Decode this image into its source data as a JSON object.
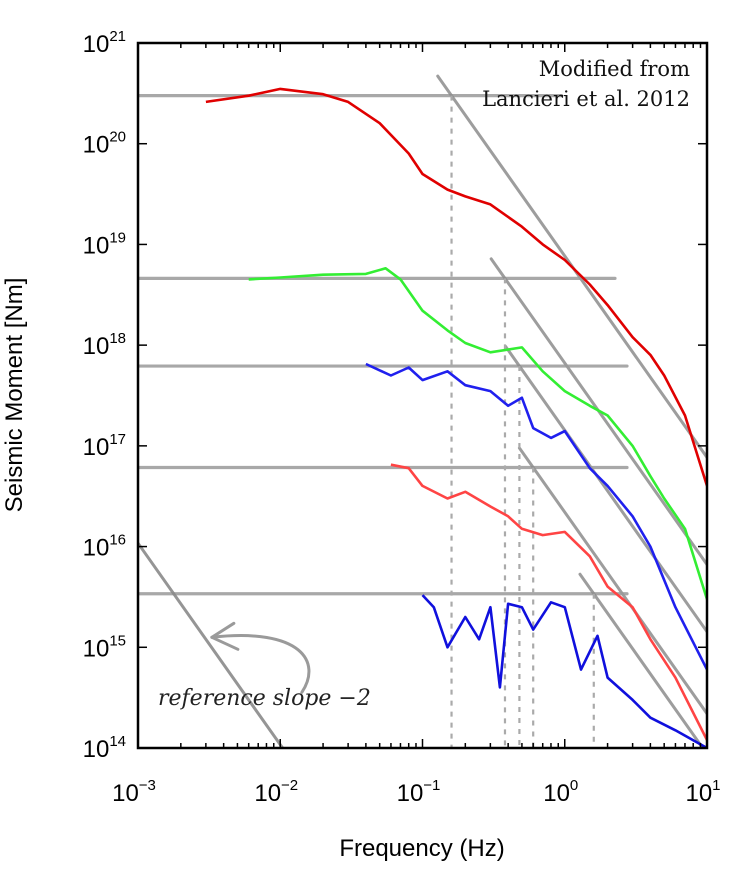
{
  "chart_data": {
    "type": "line",
    "xlabel": "Frequency (Hz)",
    "ylabel": "Seismic Moment [Nm]",
    "xscale": "log",
    "yscale": "log",
    "xlim": [
      0.001,
      10
    ],
    "ylim": [
      100000000000000.0,
      1e+21
    ],
    "grid": false,
    "x_ticks": [
      {
        "base": "10",
        "exp": "−3",
        "value": 0.001
      },
      {
        "base": "10",
        "exp": "−2",
        "value": 0.01
      },
      {
        "base": "10",
        "exp": "−1",
        "value": 0.1
      },
      {
        "base": "10",
        "exp": "0",
        "value": 1
      },
      {
        "base": "10",
        "exp": "1",
        "value": 10
      }
    ],
    "y_ticks": [
      {
        "base": "10",
        "exp": "14",
        "value": 100000000000000.0
      },
      {
        "base": "10",
        "exp": "15",
        "value": 1000000000000000.0
      },
      {
        "base": "10",
        "exp": "16",
        "value": 1e+16
      },
      {
        "base": "10",
        "exp": "17",
        "value": 1e+17
      },
      {
        "base": "10",
        "exp": "18",
        "value": 1e+18
      },
      {
        "base": "10",
        "exp": "19",
        "value": 1e+19
      },
      {
        "base": "10",
        "exp": "20",
        "value": 1e+20
      },
      {
        "base": "10",
        "exp": "21",
        "value": 1e+21
      }
    ],
    "annotation": [
      "Modified from",
      "Lancieri et al. 2012"
    ],
    "reference_label": "reference slope −2",
    "series": [
      {
        "color": "#e00000",
        "points": [
          [
            0.003,
            2.6e+20
          ],
          [
            0.006,
            3e+20
          ],
          [
            0.01,
            3.5e+20
          ],
          [
            0.02,
            3.1e+20
          ],
          [
            0.03,
            2.6e+20
          ],
          [
            0.05,
            1.6e+20
          ],
          [
            0.08,
            8e+19
          ],
          [
            0.1,
            5e+19
          ],
          [
            0.15,
            3.5e+19
          ],
          [
            0.2,
            3e+19
          ],
          [
            0.3,
            2.5e+19
          ],
          [
            0.5,
            1.5e+19
          ],
          [
            0.7,
            1e+19
          ],
          [
            1,
            7e+18
          ],
          [
            1.5,
            4e+18
          ],
          [
            2,
            2.5e+18
          ],
          [
            3,
            1.2e+18
          ],
          [
            4,
            8e+17
          ],
          [
            5,
            5e+17
          ],
          [
            7,
            2e+17
          ],
          [
            10,
            4e+16
          ]
        ]
      },
      {
        "color": "#33ee33",
        "points": [
          [
            0.006,
            4.5e+18
          ],
          [
            0.01,
            4.7e+18
          ],
          [
            0.02,
            5e+18
          ],
          [
            0.04,
            5.1e+18
          ],
          [
            0.055,
            5.8e+18
          ],
          [
            0.07,
            4.5e+18
          ],
          [
            0.1,
            2.2e+18
          ],
          [
            0.15,
            1.4e+18
          ],
          [
            0.2,
            1.05e+18
          ],
          [
            0.3,
            8.5e+17
          ],
          [
            0.5,
            9.5e+17
          ],
          [
            0.7,
            5.5e+17
          ],
          [
            1,
            3.5e+17
          ],
          [
            1.5,
            2.5e+17
          ],
          [
            2,
            2e+17
          ],
          [
            3,
            1e+17
          ],
          [
            4,
            5e+16
          ],
          [
            5,
            3e+16
          ],
          [
            7,
            1.5e+16
          ],
          [
            10,
            3000000000000000.0
          ]
        ]
      },
      {
        "color": "#2020ee",
        "points": [
          [
            0.04,
            6.5e+17
          ],
          [
            0.06,
            5e+17
          ],
          [
            0.08,
            6e+17
          ],
          [
            0.1,
            4.5e+17
          ],
          [
            0.15,
            5.5e+17
          ],
          [
            0.2,
            4e+17
          ],
          [
            0.3,
            3.5e+17
          ],
          [
            0.4,
            2.5e+17
          ],
          [
            0.5,
            3e+17
          ],
          [
            0.6,
            1.5e+17
          ],
          [
            0.8,
            1.2e+17
          ],
          [
            1,
            1.4e+17
          ],
          [
            1.5,
            6e+16
          ],
          [
            2,
            4e+16
          ],
          [
            3,
            2e+16
          ],
          [
            4,
            1e+16
          ],
          [
            6,
            2500000000000000.0
          ],
          [
            10,
            600000000000000.0
          ]
        ]
      },
      {
        "color": "#ff4444",
        "points": [
          [
            0.06,
            6.5e+16
          ],
          [
            0.08,
            6e+16
          ],
          [
            0.1,
            4e+16
          ],
          [
            0.15,
            3e+16
          ],
          [
            0.2,
            3.5e+16
          ],
          [
            0.3,
            2.5e+16
          ],
          [
            0.4,
            2e+16
          ],
          [
            0.5,
            1.5e+16
          ],
          [
            0.7,
            1.3e+16
          ],
          [
            1,
            1.4e+16
          ],
          [
            1.5,
            8000000000000000.0
          ],
          [
            2,
            4000000000000000.0
          ],
          [
            3,
            2500000000000000.0
          ],
          [
            4,
            1200000000000000.0
          ],
          [
            6,
            500000000000000.0
          ],
          [
            10,
            120000000000000.0
          ]
        ]
      },
      {
        "color": "#1010dd",
        "points": [
          [
            0.1,
            3300000000000000.0
          ],
          [
            0.12,
            2500000000000000.0
          ],
          [
            0.15,
            1000000000000000.0
          ],
          [
            0.2,
            2000000000000000.0
          ],
          [
            0.25,
            1200000000000000.0
          ],
          [
            0.3,
            2500000000000000.0
          ],
          [
            0.35,
            400000000000000.0
          ],
          [
            0.4,
            2700000000000000.0
          ],
          [
            0.5,
            2500000000000000.0
          ],
          [
            0.6,
            1500000000000000.0
          ],
          [
            0.8,
            2800000000000000.0
          ],
          [
            1,
            2500000000000000.0
          ],
          [
            1.3,
            600000000000000.0
          ],
          [
            1.7,
            1300000000000000.0
          ],
          [
            2,
            500000000000000.0
          ],
          [
            3,
            300000000000000.0
          ],
          [
            4,
            200000000000000.0
          ],
          [
            6,
            150000000000000.0
          ],
          [
            10,
            100000000000000.0
          ]
        ]
      }
    ],
    "fits": [
      {
        "plateau": 3e+20,
        "corner_hz": 0.16
      },
      {
        "plateau": 4.6e+18,
        "corner_hz": 0.38
      },
      {
        "plateau": 6.2e+17,
        "corner_hz": 0.48
      },
      {
        "plateau": 6.1e+16,
        "corner_hz": 0.6
      },
      {
        "plateau": 3400000000000000.0,
        "corner_hz": 1.6
      }
    ],
    "reference_line": {
      "slope": -2,
      "through": [
        0.003,
        1200000000000000.0
      ]
    }
  }
}
